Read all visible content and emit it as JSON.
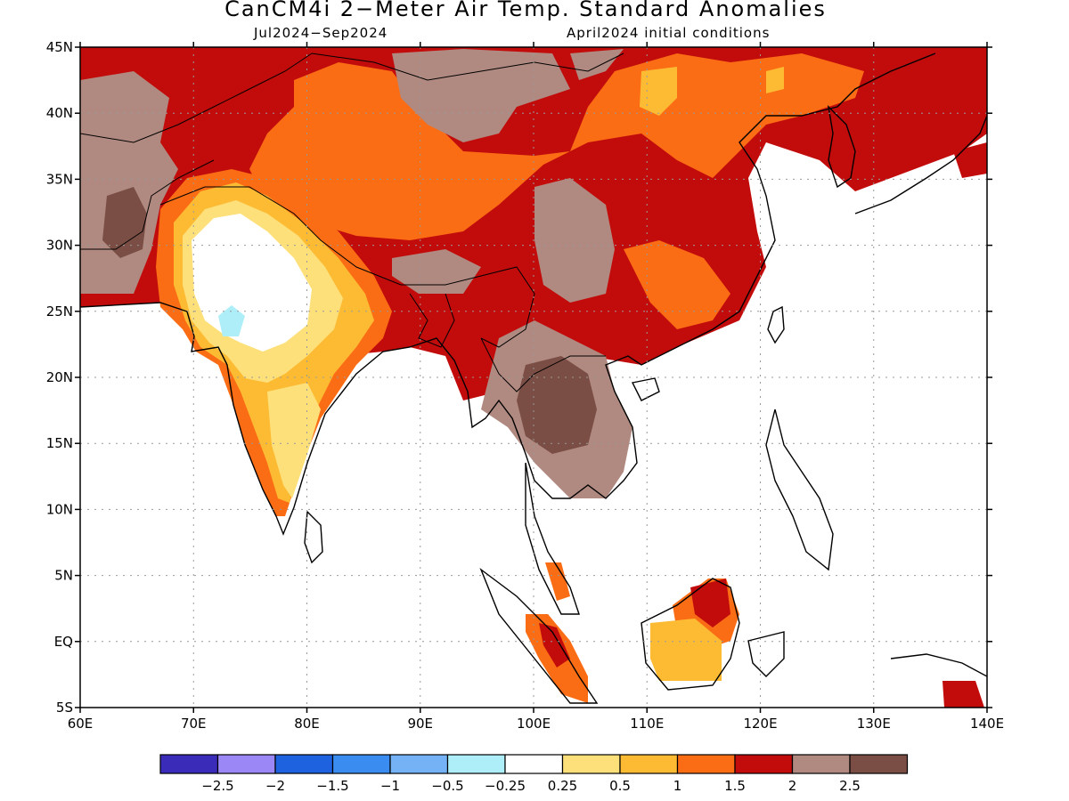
{
  "header": {
    "title": "CanCM4i 2−Meter Air Temp. Standard Anomalies",
    "period": "Jul2024−Sep2024",
    "initial_conditions": "April2024 initial conditions"
  },
  "map": {
    "lon_range": [
      60,
      140
    ],
    "lat_range": [
      -5,
      45
    ],
    "lat_labels": [
      "45N",
      "40N",
      "35N",
      "30N",
      "25N",
      "20N",
      "15N",
      "10N",
      "5N",
      "EQ",
      "5S"
    ],
    "lon_labels": [
      "60E",
      "70E",
      "80E",
      "90E",
      "100E",
      "110E",
      "120E",
      "130E",
      "140E"
    ],
    "grid": "dotted",
    "region": "South and East Asia"
  },
  "colorbar": {
    "colors": [
      "#3a2bb8",
      "#9b87f5",
      "#1f62e0",
      "#3b8cf0",
      "#74b2f5",
      "#aeeef8",
      "#ffffff",
      "#fde07a",
      "#fdbb34",
      "#fb6d14",
      "#c20c0c",
      "#b08a80",
      "#7a4e44"
    ],
    "labels": [
      "−2.5",
      "−2",
      "−1.5",
      "−1",
      "−0.5",
      "−0.25",
      "0.25",
      "0.5",
      "1",
      "1.5",
      "2",
      "2.5"
    ]
  }
}
